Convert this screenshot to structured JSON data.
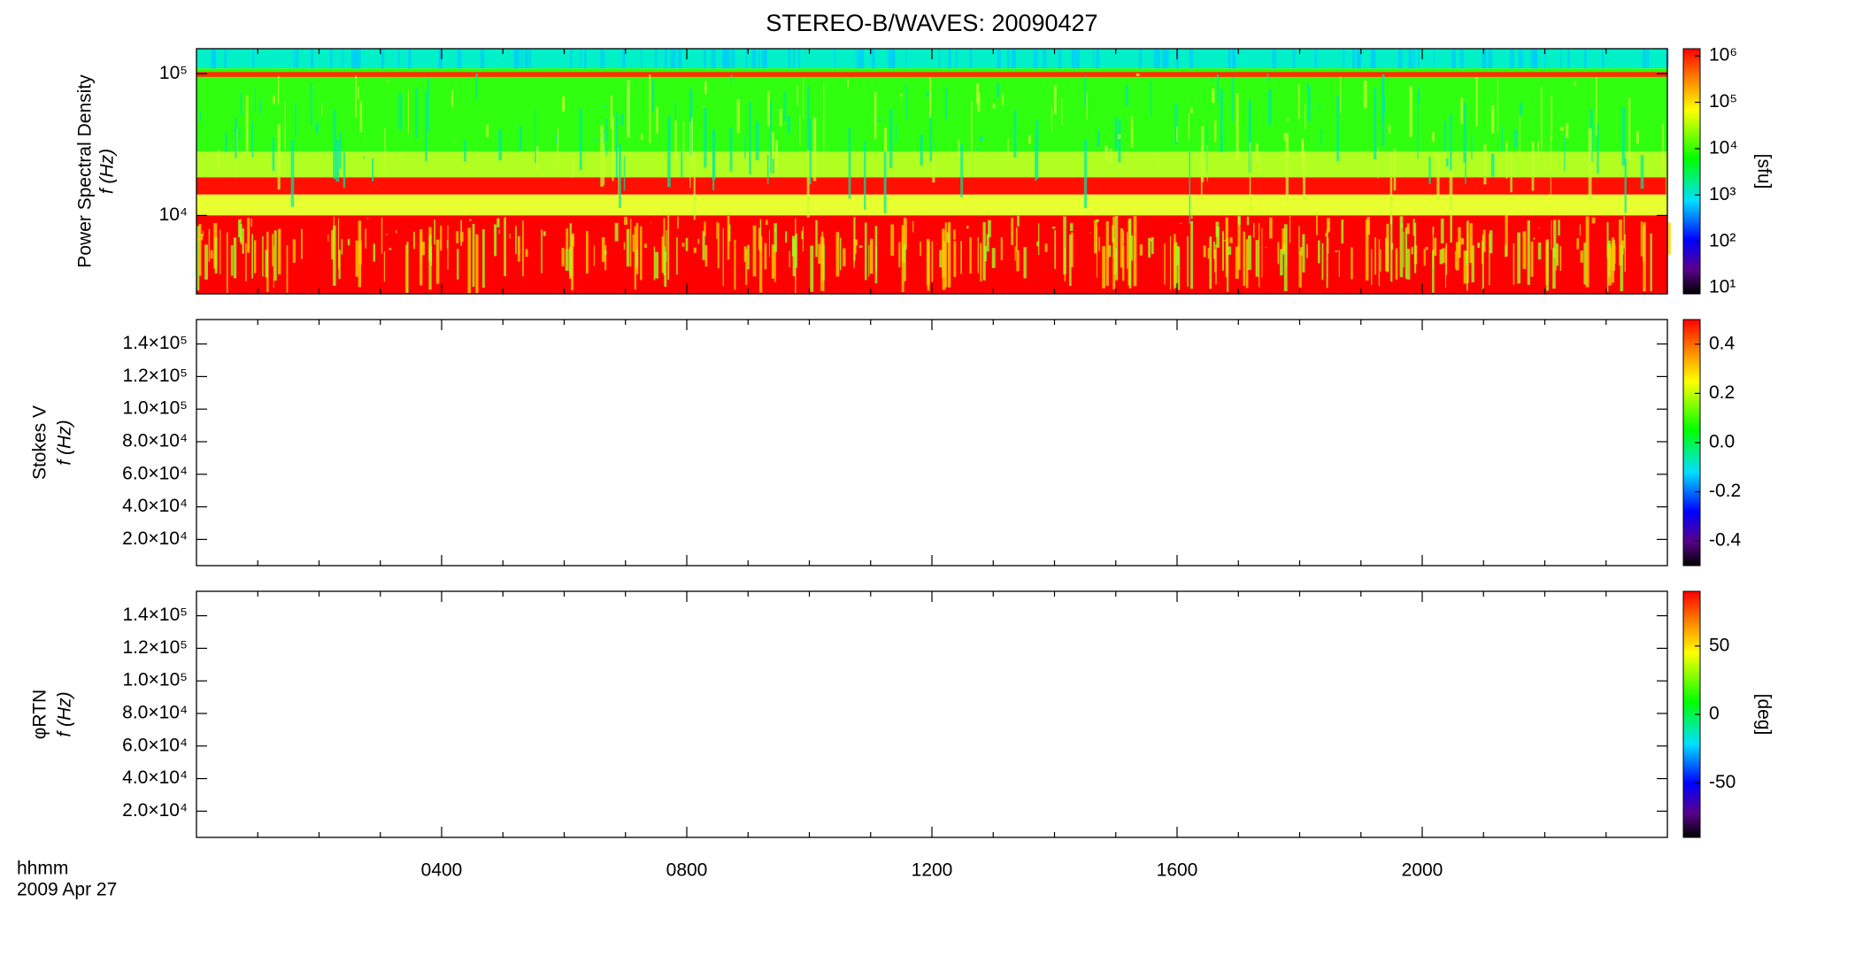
{
  "chart_data": [
    {
      "type": "spectrogram",
      "title": "STEREO-B/WAVES: 20090427",
      "ylabel": [
        "Power Spectral Density",
        "f (Hz)"
      ],
      "ylog": true,
      "ylim": [
        2800,
        150000
      ],
      "yticks": [
        {
          "value": 10000,
          "label": "10⁴"
        },
        {
          "value": 100000,
          "label": "10⁵"
        }
      ],
      "colorbar": {
        "log": true,
        "lim": [
          7.4,
          1430000
        ],
        "label": "[sfu]",
        "ticks": [
          {
            "value": 10,
            "label": "10¹"
          },
          {
            "value": 100,
            "label": "10²"
          },
          {
            "value": 1000,
            "label": "10³"
          },
          {
            "value": 10000,
            "label": "10⁴"
          },
          {
            "value": 100000,
            "label": "10⁵"
          },
          {
            "value": 1000000,
            "label": "10⁶"
          }
        ]
      }
    },
    {
      "type": "spectrogram",
      "ylabel": [
        "Stokes V",
        "f (Hz)"
      ],
      "ylog": false,
      "ylim": [
        3900,
        155000
      ],
      "yticks": [
        {
          "value": 20000,
          "label": "2.0×10⁴"
        },
        {
          "value": 40000,
          "label": "4.0×10⁴"
        },
        {
          "value": 60000,
          "label": "6.0×10⁴"
        },
        {
          "value": 80000,
          "label": "8.0×10⁴"
        },
        {
          "value": 100000,
          "label": "1.0×10⁵"
        },
        {
          "value": 120000,
          "label": "1.2×10⁵"
        },
        {
          "value": 140000,
          "label": "1.4×10⁵"
        }
      ],
      "colorbar": {
        "log": false,
        "lim": [
          -0.5,
          0.5
        ],
        "ticks": [
          -0.4,
          -0.2,
          {
            "value": 0,
            "label": "0.0"
          },
          0.2,
          0.4
        ]
      }
    },
    {
      "type": "spectrogram",
      "ylabel": [
        "φRTN",
        "f (Hz)"
      ],
      "ylog": false,
      "ylim": [
        3900,
        155000
      ],
      "yticks": [
        {
          "value": 20000,
          "label": "2.0×10⁴"
        },
        {
          "value": 40000,
          "label": "4.0×10⁴"
        },
        {
          "value": 60000,
          "label": "6.0×10⁴"
        },
        {
          "value": 80000,
          "label": "8.0×10⁴"
        },
        {
          "value": 100000,
          "label": "1.0×10⁵"
        },
        {
          "value": 120000,
          "label": "1.2×10⁵"
        },
        {
          "value": 140000,
          "label": "1.4×10⁵"
        }
      ],
      "colorbar": {
        "log": false,
        "lim": [
          -90,
          90
        ],
        "label": "[deg]",
        "ticks": [
          -50,
          0,
          50
        ]
      },
      "xlabel": [
        "hhmm",
        "2009 Apr 27"
      ],
      "xlim": [
        0,
        24
      ],
      "xticks": [
        {
          "value": 4,
          "label": "0400"
        },
        {
          "value": 8,
          "label": "0800"
        },
        {
          "value": 12,
          "label": "1200"
        },
        {
          "value": 16,
          "label": "1600"
        },
        {
          "value": 20,
          "label": "2000"
        }
      ],
      "xminorticks": [
        1,
        2,
        3,
        5,
        6,
        7,
        9,
        10,
        11,
        13,
        14,
        15,
        17,
        18,
        19,
        21,
        22,
        23
      ]
    }
  ]
}
